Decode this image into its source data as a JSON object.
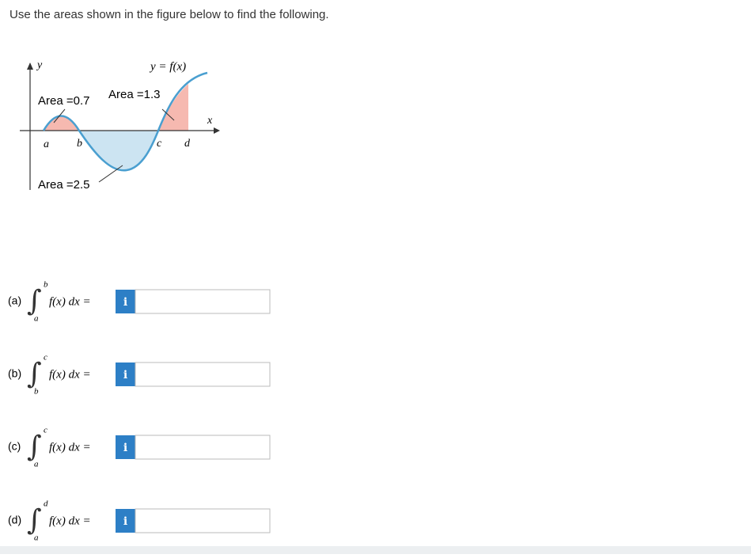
{
  "instruction": "Use the areas shown in the figure below to find the following.",
  "figure": {
    "y_axis": "y",
    "x_axis": "x",
    "curve": "y = f(x)",
    "areas": [
      "Area =0.7",
      "Area =1.3",
      "Area =2.5"
    ],
    "points": [
      "a",
      "b",
      "c",
      "d"
    ]
  },
  "questions": [
    {
      "label": "(a)",
      "lower": "a",
      "upper": "b",
      "integrand": "f(x) dx =",
      "info": "i"
    },
    {
      "label": "(b)",
      "lower": "b",
      "upper": "c",
      "integrand": "f(x) dx =",
      "info": "i"
    },
    {
      "label": "(c)",
      "lower": "a",
      "upper": "c",
      "integrand": "f(x) dx =",
      "info": "i"
    },
    {
      "label": "(d)",
      "lower": "a",
      "upper": "d",
      "integrand": "f(x) dx =",
      "info": "i"
    }
  ]
}
